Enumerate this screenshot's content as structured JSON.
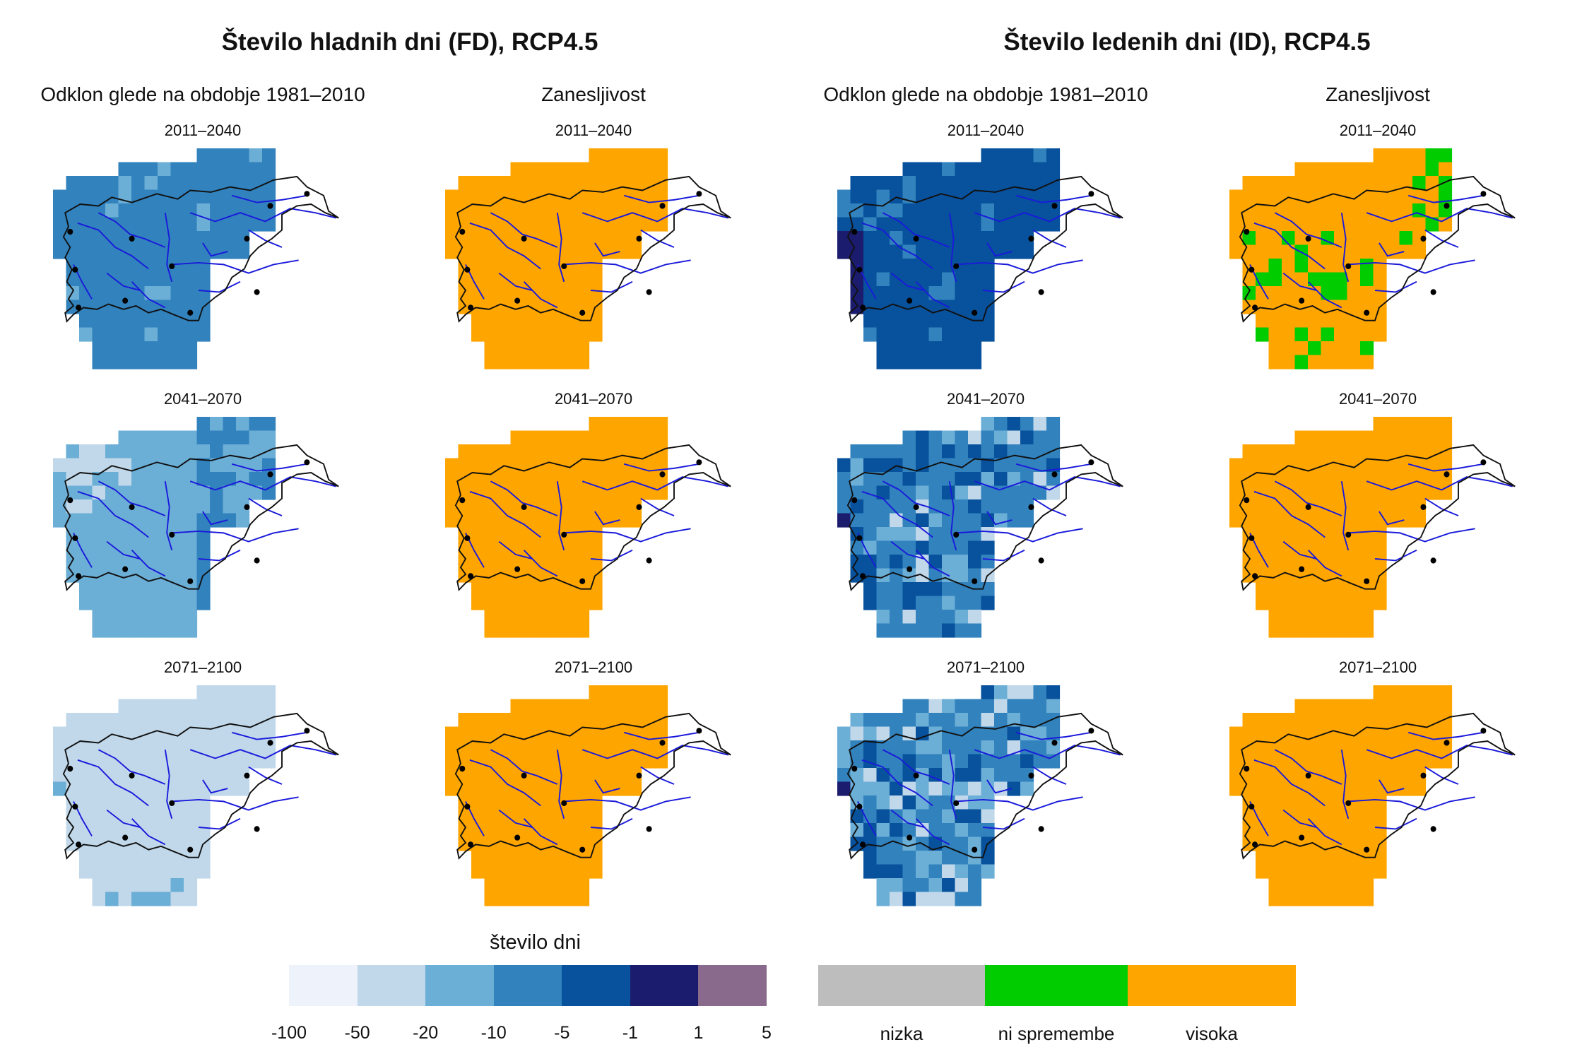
{
  "titles": {
    "fd": "Število hladnih dni (FD), RCP4.5",
    "id": "Število ledenih dni (ID), RCP4.5"
  },
  "column_headers": {
    "deviation": "Odklon glede na obdobje 1981–2010",
    "reliability": "Zanesljivost"
  },
  "periods": [
    "2011–2040",
    "2041–2070",
    "2071–2100"
  ],
  "legend_deviation": {
    "title": "število dni",
    "ticks": [
      "-100",
      "-50",
      "-20",
      "-10",
      "-5",
      "-1",
      "1",
      "5"
    ],
    "colors": [
      "#eef3fb",
      "#c0d8ea",
      "#6baed6",
      "#3182bd",
      "#08519c",
      "#1c1c6e",
      "#8a6a8c"
    ]
  },
  "legend_reliability": {
    "labels": [
      "nizka",
      "ni spremembe",
      "visoka"
    ],
    "colors": [
      "#bdbdbd",
      "#00cc00",
      "#ffa500"
    ]
  },
  "map_colors": {
    "river": "#1a1adb",
    "outline": "#111111"
  }
}
